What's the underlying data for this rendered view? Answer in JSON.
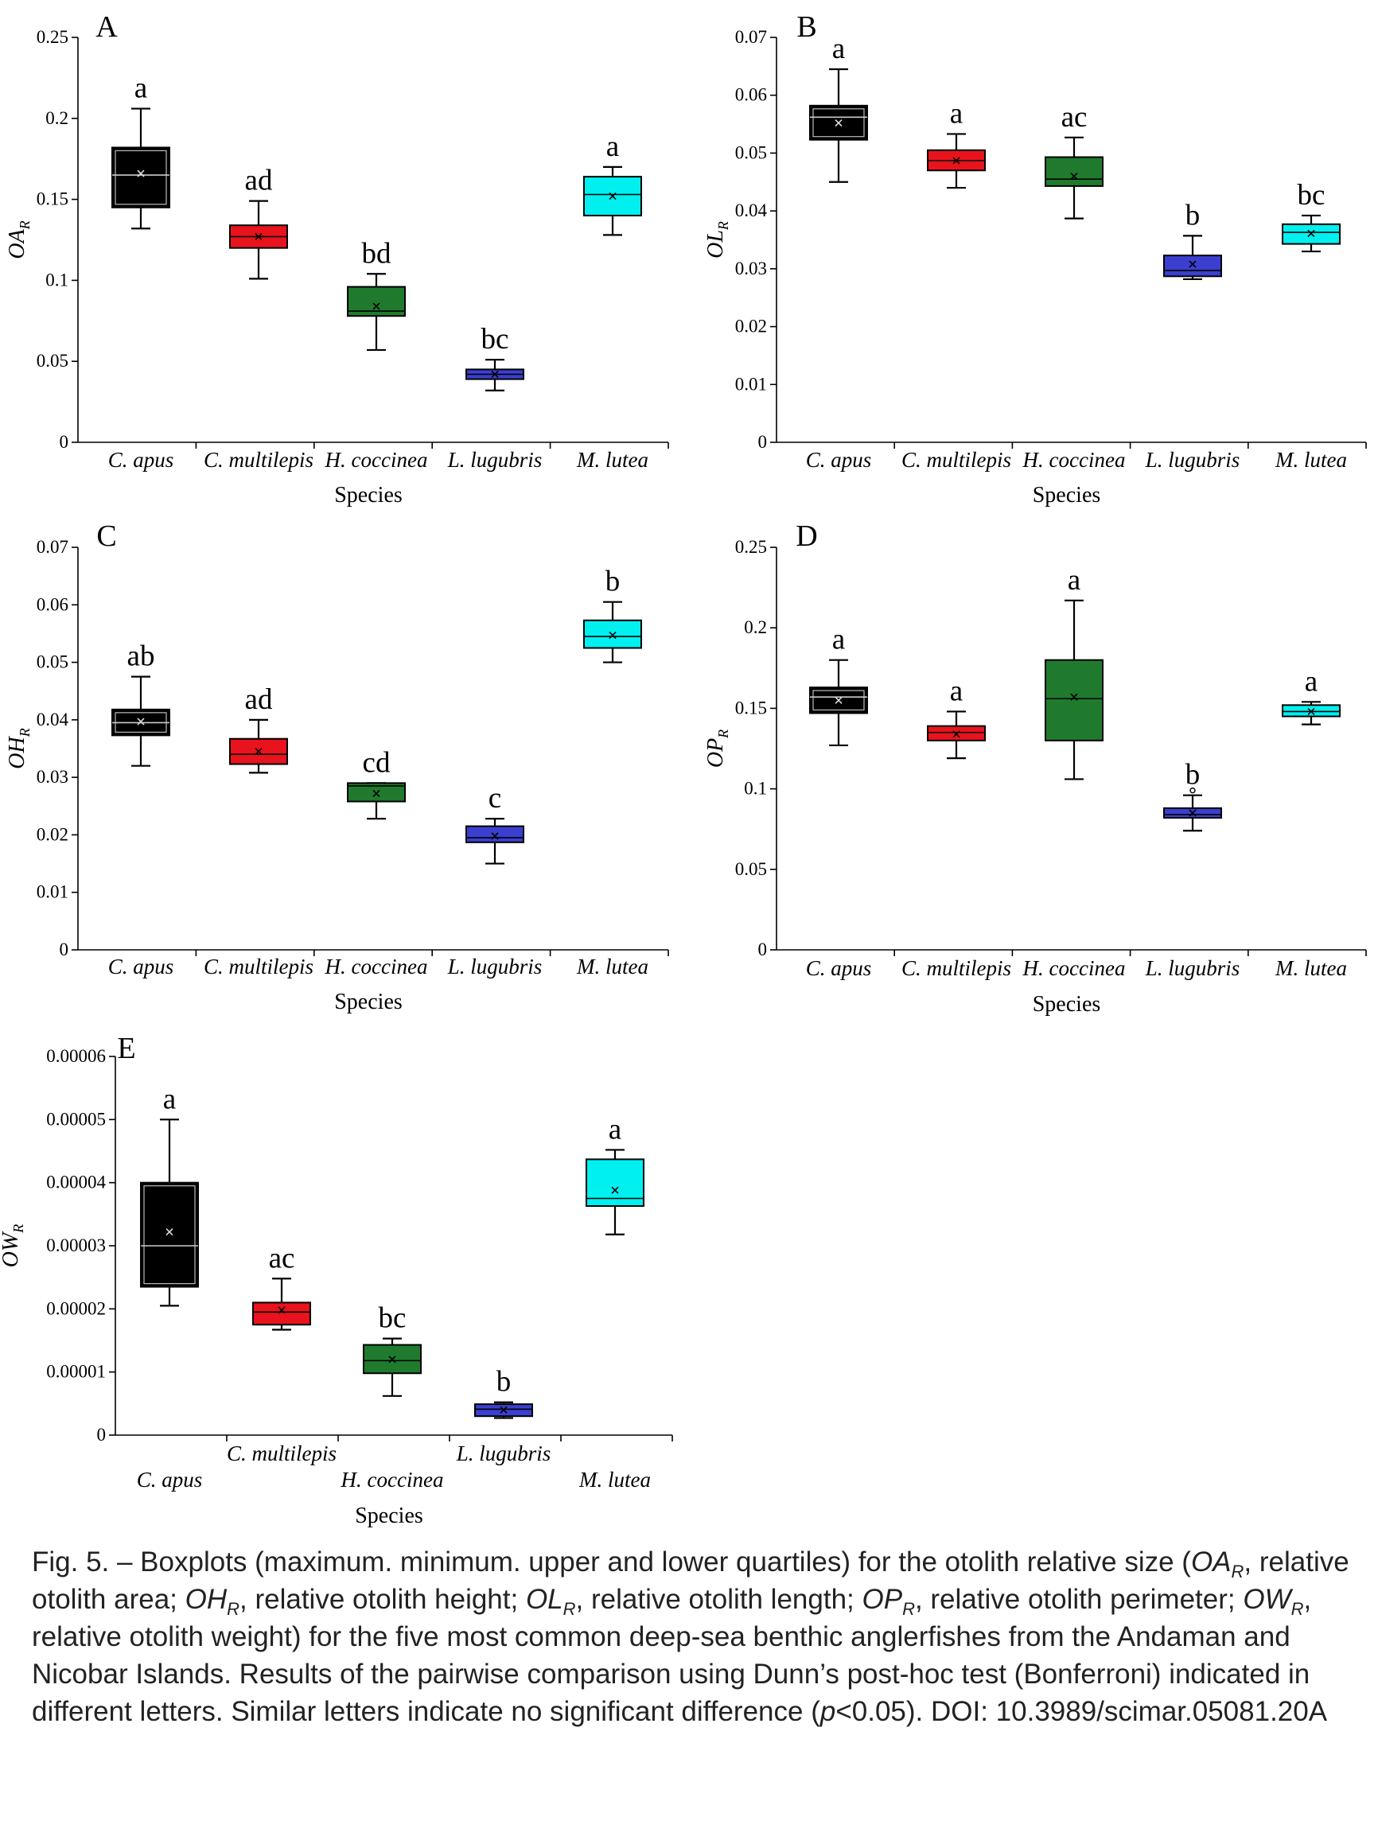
{
  "chart_data": [
    {
      "type": "boxplot",
      "panel_label": "A",
      "xlabel": "Species",
      "ylabel": "OA",
      "ylabel_sub": "R",
      "ylim": [
        0,
        0.25
      ],
      "yticks": [
        "0",
        "0.05",
        "0.1",
        "0.15",
        "0.2",
        "0.25"
      ],
      "categories": [
        "C. apus",
        "C. multilepis",
        "H. coccinea",
        "L. lugubris",
        "M. lutea"
      ],
      "boxes": [
        {
          "min": 0.132,
          "q1": 0.145,
          "median": 0.165,
          "q3": 0.182,
          "max": 0.206,
          "mean": 0.166,
          "letter": "a"
        },
        {
          "min": 0.101,
          "q1": 0.12,
          "median": 0.127,
          "q3": 0.134,
          "max": 0.149,
          "mean": 0.127,
          "letter": "ad"
        },
        {
          "min": 0.057,
          "q1": 0.078,
          "median": 0.081,
          "q3": 0.096,
          "max": 0.104,
          "mean": 0.084,
          "letter": "bd"
        },
        {
          "min": 0.032,
          "q1": 0.039,
          "median": 0.042,
          "q3": 0.045,
          "max": 0.051,
          "mean": 0.042,
          "letter": "bc"
        },
        {
          "min": 0.128,
          "q1": 0.14,
          "median": 0.153,
          "q3": 0.164,
          "max": 0.17,
          "mean": 0.152,
          "letter": "a"
        }
      ]
    },
    {
      "type": "boxplot",
      "panel_label": "B",
      "xlabel": "Species",
      "ylabel": "OL",
      "ylabel_sub": "R",
      "ylim": [
        0,
        0.07
      ],
      "yticks": [
        "0",
        "0.01",
        "0.02",
        "0.03",
        "0.04",
        "0.05",
        "0.06",
        "0.07"
      ],
      "categories": [
        "C. apus",
        "C. multilepis",
        "H. coccinea",
        "L. lugubris",
        "M. lutea"
      ],
      "boxes": [
        {
          "min": 0.045,
          "q1": 0.0523,
          "median": 0.0562,
          "q3": 0.0582,
          "max": 0.0645,
          "mean": 0.0552,
          "letter": "a"
        },
        {
          "min": 0.044,
          "q1": 0.047,
          "median": 0.0487,
          "q3": 0.0505,
          "max": 0.0533,
          "mean": 0.0487,
          "letter": "a"
        },
        {
          "min": 0.0387,
          "q1": 0.0443,
          "median": 0.0455,
          "q3": 0.0493,
          "max": 0.0527,
          "mean": 0.046,
          "letter": "ac"
        },
        {
          "min": 0.0282,
          "q1": 0.0287,
          "median": 0.0297,
          "q3": 0.0323,
          "max": 0.0357,
          "mean": 0.0308,
          "letter": "b"
        },
        {
          "min": 0.033,
          "q1": 0.0343,
          "median": 0.0363,
          "q3": 0.0377,
          "max": 0.0392,
          "mean": 0.0361,
          "letter": "bc"
        }
      ]
    },
    {
      "type": "boxplot",
      "panel_label": "C",
      "xlabel": "Species",
      "ylabel": "OH",
      "ylabel_sub": "R",
      "ylim": [
        0,
        0.07
      ],
      "yticks": [
        "0",
        "0.01",
        "0.02",
        "0.03",
        "0.04",
        "0.05",
        "0.06",
        "0.07"
      ],
      "categories": [
        "C. apus",
        "C. multilepis",
        "H. coccinea",
        "L. lugubris",
        "M. lutea"
      ],
      "boxes": [
        {
          "min": 0.032,
          "q1": 0.0373,
          "median": 0.0395,
          "q3": 0.0418,
          "max": 0.0475,
          "mean": 0.0397,
          "letter": "ab"
        },
        {
          "min": 0.0308,
          "q1": 0.0323,
          "median": 0.034,
          "q3": 0.0367,
          "max": 0.04,
          "mean": 0.0345,
          "letter": "ad"
        },
        {
          "min": 0.0228,
          "q1": 0.0258,
          "median": 0.0285,
          "q3": 0.029,
          "max": 0.029,
          "mean": 0.0272,
          "letter": "cd"
        },
        {
          "min": 0.015,
          "q1": 0.0187,
          "median": 0.0195,
          "q3": 0.0215,
          "max": 0.0228,
          "mean": 0.0198,
          "letter": "c"
        },
        {
          "min": 0.05,
          "q1": 0.0525,
          "median": 0.0545,
          "q3": 0.0573,
          "max": 0.0605,
          "mean": 0.0547,
          "letter": "b"
        }
      ]
    },
    {
      "type": "boxplot",
      "panel_label": "D",
      "xlabel": "Species",
      "ylabel": "OP",
      "ylabel_sub": "R",
      "ylim": [
        0,
        0.25
      ],
      "yticks": [
        "0",
        "0.05",
        "0.1",
        "0.15",
        "0.2",
        "0.25"
      ],
      "categories": [
        "C. apus",
        "C. multilepis",
        "H. coccinea",
        "L. lugubris",
        "M. lutea"
      ],
      "boxes": [
        {
          "min": 0.127,
          "q1": 0.147,
          "median": 0.157,
          "q3": 0.163,
          "max": 0.18,
          "mean": 0.155,
          "letter": "a"
        },
        {
          "min": 0.119,
          "q1": 0.13,
          "median": 0.135,
          "q3": 0.139,
          "max": 0.148,
          "mean": 0.134,
          "letter": "a"
        },
        {
          "min": 0.106,
          "q1": 0.13,
          "median": 0.156,
          "q3": 0.18,
          "max": 0.217,
          "mean": 0.157,
          "letter": "a"
        },
        {
          "min": 0.074,
          "q1": 0.082,
          "median": 0.084,
          "q3": 0.088,
          "max": 0.096,
          "mean": 0.085,
          "outlier": 0.099,
          "letter": "b"
        },
        {
          "min": 0.14,
          "q1": 0.145,
          "median": 0.148,
          "q3": 0.152,
          "max": 0.154,
          "mean": 0.148,
          "letter": "a"
        }
      ]
    },
    {
      "type": "boxplot",
      "panel_label": "E",
      "xlabel": "Species",
      "ylabel": "OW",
      "ylabel_sub": "R",
      "ylim": [
        0,
        6e-05
      ],
      "yticks": [
        "0",
        "0.00001",
        "0.00002",
        "0.00003",
        "0.00004",
        "0.00005",
        "0.00006"
      ],
      "categories": [
        "C. apus",
        "C. multilepis",
        "H. coccinea",
        "L. lugubris",
        "M. lutea"
      ],
      "boxes": [
        {
          "min": 2.05e-05,
          "q1": 2.35e-05,
          "median": 3e-05,
          "q3": 4e-05,
          "max": 5e-05,
          "mean": 3.22e-05,
          "letter": "a"
        },
        {
          "min": 1.67e-05,
          "q1": 1.75e-05,
          "median": 1.95e-05,
          "q3": 2.1e-05,
          "max": 2.48e-05,
          "mean": 1.98e-05,
          "letter": "ac"
        },
        {
          "min": 6.2e-06,
          "q1": 9.8e-06,
          "median": 1.18e-05,
          "q3": 1.43e-05,
          "max": 1.53e-05,
          "mean": 1.2e-05,
          "letter": "bc"
        },
        {
          "min": 2.7e-06,
          "q1": 3e-06,
          "median": 4.1e-06,
          "q3": 4.9e-06,
          "max": 5.2e-06,
          "mean": 4e-06,
          "letter": "b"
        },
        {
          "min": 3.18e-05,
          "q1": 3.63e-05,
          "median": 3.75e-05,
          "q3": 4.37e-05,
          "max": 4.52e-05,
          "mean": 3.88e-05,
          "letter": "a"
        }
      ]
    }
  ],
  "colors": [
    "#000000",
    "#e8131d",
    "#1f7a2e",
    "#3b3fcf",
    "#00f0f0"
  ],
  "caption": {
    "part1": "Fig. 5. – Boxplots (maximum. minimum. upper and lower quartiles) for the otolith relative size (",
    "oa": "OA",
    "oa_text": ", relative otolith area; ",
    "oh": "OH",
    "oh_text": ", relative otolith height; ",
    "ol": "OL",
    "ol_text": ", relative otolith length; ",
    "op": "OP",
    "op_text": ", relative otolith perimeter; ",
    "ow": "OW",
    "ow_text": ", relative otolith weight) for the five most common deep-sea benthic anglerfishes from the Andaman and Nicobar Islands. Results of the pairwise comparison using Dunn’s post-hoc test (Bonferroni) indicated in different letters. Similar letters indicate no significant difference (",
    "p": "p",
    "end": "<0.05). DOI: 10.3989/scimar.05081.20A",
    "sub": "R"
  }
}
